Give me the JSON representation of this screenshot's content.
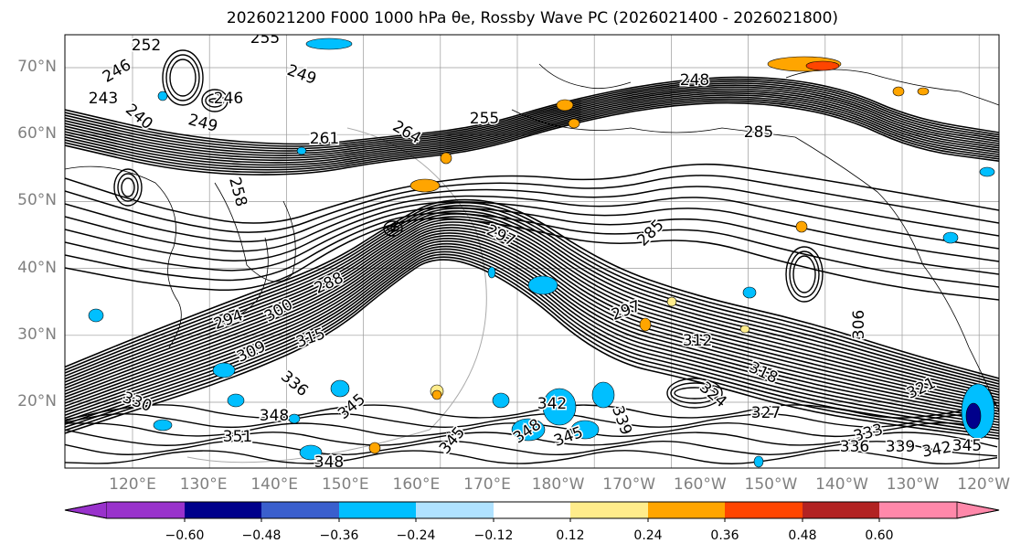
{
  "title": "2026021200 F000 1000 hPa θe, Rossby Wave PC (2026021400 - 2026021800)",
  "map": {
    "lat_labels": [
      "70°N",
      "60°N",
      "50°N",
      "40°N",
      "30°N",
      "20°N"
    ],
    "lon_labels": [
      "120°E",
      "130°E",
      "140°E",
      "150°E",
      "160°E",
      "170°E",
      "180°W",
      "170°W",
      "160°W",
      "150°W",
      "140°W",
      "130°W",
      "120°W"
    ],
    "lon_range": [
      "110°E",
      "120°W"
    ],
    "lat_range": [
      "10°N",
      "75°N"
    ],
    "contour_variable": "1000 hPa θe",
    "contour_labels": [
      "252",
      "246",
      "249",
      "243",
      "240",
      "249",
      "246",
      "255",
      "261",
      "258",
      "264",
      "255",
      "248",
      "285",
      "297",
      "285",
      "288",
      "294",
      "300",
      "309",
      "315",
      "297",
      "312",
      "306",
      "318",
      "324",
      "327",
      "321",
      "330",
      "336",
      "348",
      "345",
      "351",
      "348",
      "345",
      "342",
      "339",
      "345",
      "348",
      "333",
      "336",
      "339",
      "342",
      "345"
    ]
  },
  "colorbar": {
    "ticks": [
      "−0.60",
      "−0.48",
      "−0.36",
      "−0.24",
      "−0.12",
      "0.12",
      "0.24",
      "0.36",
      "0.48",
      "0.60"
    ],
    "colors": [
      "#9932cc",
      "#00008b",
      "#3a5fcd",
      "#00bfff",
      "#b0e2ff",
      "#ffffff",
      "#ffec8b",
      "#ffa500",
      "#ff4500",
      "#b22222",
      "#ff88aa"
    ],
    "extend": "both"
  }
}
